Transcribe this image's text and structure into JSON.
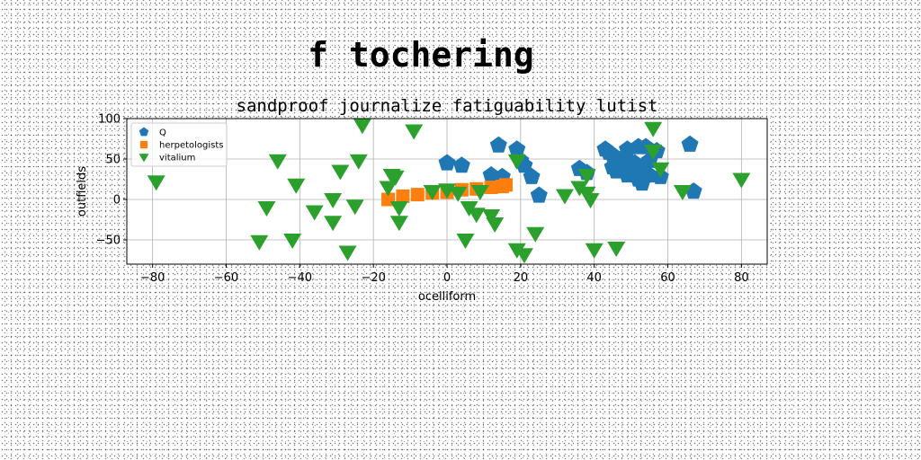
{
  "figure": {
    "title": "f tochering"
  },
  "chart_data": {
    "type": "scatter",
    "title": "sandproof journalize fatiguability lutist",
    "xlabel": "ocelliform",
    "ylabel": "outfields",
    "xlim": [
      -87,
      87
    ],
    "ylim": [
      -80,
      100
    ],
    "xticks": [
      -80,
      -60,
      -40,
      -20,
      0,
      20,
      40,
      60,
      80
    ],
    "yticks": [
      -50,
      0,
      50,
      100
    ],
    "grid": true,
    "legend": "top-left",
    "series": [
      {
        "name": "Q",
        "marker": "pentagon",
        "color": "#1f77b4",
        "points": [
          [
            0,
            45
          ],
          [
            4,
            42
          ],
          [
            12,
            30
          ],
          [
            14,
            67
          ],
          [
            15,
            28
          ],
          [
            19,
            62
          ],
          [
            20,
            48
          ],
          [
            21,
            42
          ],
          [
            23,
            28
          ],
          [
            25,
            5
          ],
          [
            36,
            38
          ],
          [
            38,
            33
          ],
          [
            43,
            62
          ],
          [
            44,
            58
          ],
          [
            45,
            55
          ],
          [
            45,
            40
          ],
          [
            46,
            35
          ],
          [
            47,
            48
          ],
          [
            48,
            52
          ],
          [
            49,
            62
          ],
          [
            49,
            30
          ],
          [
            50,
            42
          ],
          [
            50,
            32
          ],
          [
            51,
            45
          ],
          [
            52,
            65
          ],
          [
            52,
            25
          ],
          [
            53,
            38
          ],
          [
            53,
            20
          ],
          [
            54,
            65
          ],
          [
            55,
            48
          ],
          [
            55,
            30
          ],
          [
            57,
            60
          ],
          [
            58,
            28
          ],
          [
            66,
            68
          ],
          [
            67,
            10
          ]
        ]
      },
      {
        "name": "herpetologists",
        "marker": "square",
        "color": "#ff7f0e",
        "points": [
          [
            -16,
            0
          ],
          [
            -12,
            4
          ],
          [
            -8,
            6
          ],
          [
            -4,
            8
          ],
          [
            0,
            9
          ],
          [
            4,
            12
          ],
          [
            8,
            13
          ],
          [
            12,
            15
          ],
          [
            15,
            16
          ],
          [
            16,
            18
          ]
        ]
      },
      {
        "name": "vitalium",
        "marker": "triangle_down",
        "color": "#2ca02c",
        "points": [
          [
            -79,
            22
          ],
          [
            -51,
            -52
          ],
          [
            -49,
            -10
          ],
          [
            -46,
            48
          ],
          [
            -42,
            -50
          ],
          [
            -41,
            18
          ],
          [
            -36,
            -15
          ],
          [
            -31,
            -28
          ],
          [
            -31,
            0
          ],
          [
            -29,
            35
          ],
          [
            -27,
            -65
          ],
          [
            -25,
            -8
          ],
          [
            -24,
            48
          ],
          [
            -23,
            92
          ],
          [
            -16,
            15
          ],
          [
            -15,
            30
          ],
          [
            -14,
            28
          ],
          [
            -13,
            -10
          ],
          [
            -13,
            -28
          ],
          [
            -9,
            85
          ],
          [
            -4,
            10
          ],
          [
            0,
            12
          ],
          [
            3,
            8
          ],
          [
            5,
            -50
          ],
          [
            6,
            -10
          ],
          [
            8,
            -18
          ],
          [
            9,
            10
          ],
          [
            12,
            -20
          ],
          [
            13,
            -30
          ],
          [
            19,
            48
          ],
          [
            19,
            -62
          ],
          [
            21,
            -68
          ],
          [
            24,
            -42
          ],
          [
            32,
            5
          ],
          [
            36,
            15
          ],
          [
            38,
            30
          ],
          [
            38,
            8
          ],
          [
            39,
            0
          ],
          [
            40,
            -62
          ],
          [
            46,
            -60
          ],
          [
            56,
            88
          ],
          [
            56,
            60
          ],
          [
            58,
            38
          ],
          [
            64,
            10
          ],
          [
            80,
            25
          ]
        ]
      }
    ]
  }
}
